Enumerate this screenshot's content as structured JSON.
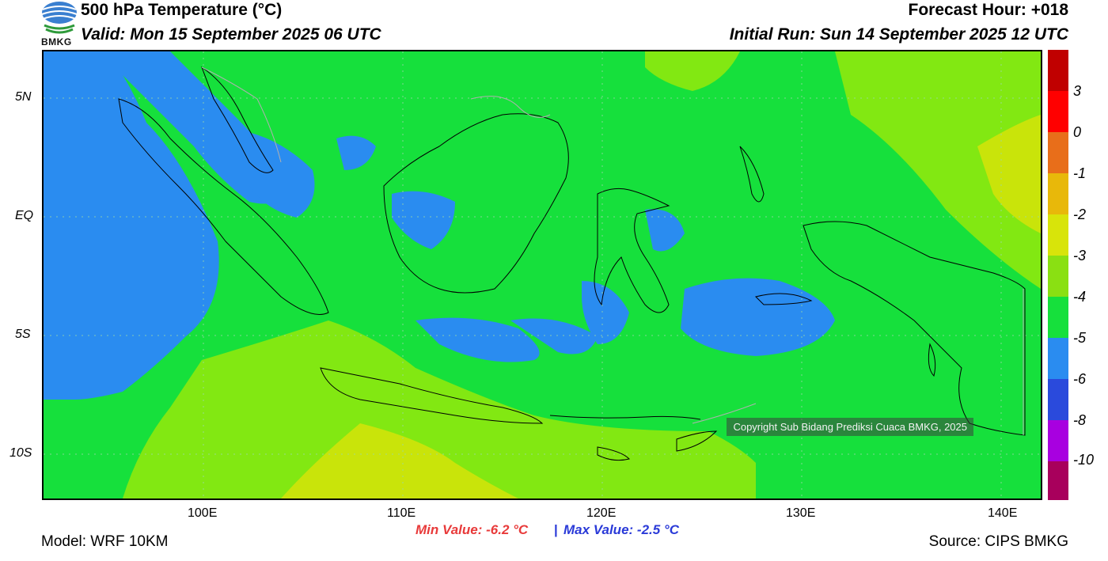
{
  "header": {
    "title": "500 hPa Temperature (°C)",
    "valid": "Valid: Mon 15 September 2025 06 UTC",
    "forecast_hour": "Forecast Hour: +018",
    "initial_run": "Initial Run: Sun 14 September 2025 12 UTC",
    "logo_text": "BMKG"
  },
  "map": {
    "lat_labels": [
      "5N",
      "EQ",
      "5S",
      "10S"
    ],
    "lon_labels": [
      "100E",
      "110E",
      "120E",
      "130E",
      "140E"
    ],
    "copyright": "Copyright Sub Bidang Prediksi Cuaca BMKG, 2025",
    "colors": {
      "blue": "#2a8cf0",
      "green": "#16e03c",
      "lightgreen": "#82e812",
      "yellowgreen": "#c9e40a",
      "coast": "#000000",
      "border": "#b0b0b0"
    }
  },
  "colorbar": {
    "labels": [
      "3",
      "0",
      "-1",
      "-2",
      "-3",
      "-4",
      "-5",
      "-6",
      "-8",
      "-10"
    ],
    "colors": [
      "#c00000",
      "#ff0000",
      "#ff1a1a",
      "#e86e1a",
      "#e8b80a",
      "#d8e40a",
      "#8ae012",
      "#16e03c",
      "#2a8cf0",
      "#2a4adc",
      "#a800e0",
      "#a8005c"
    ]
  },
  "stats": {
    "min": "Min Value: -6.2 °C",
    "separator": "|",
    "max": "Max Value: -2.5 °C"
  },
  "footer": {
    "model": "Model: WRF 10KM",
    "source": "Source: CIPS BMKG"
  }
}
